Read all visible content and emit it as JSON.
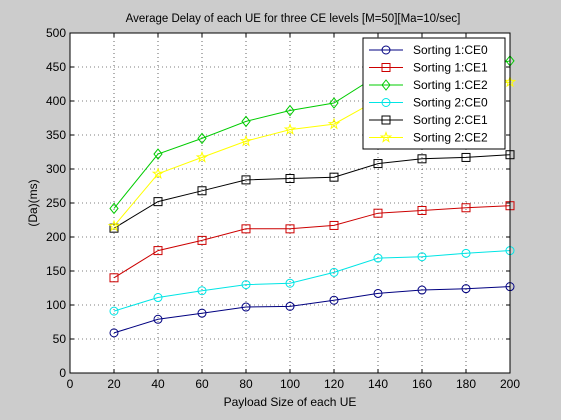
{
  "chart_data": {
    "type": "line",
    "title": "Average Delay of each UE  for three CE levels [M=50][Ma=10/sec]",
    "xlabel": "Payload Size of each UE",
    "ylabel": "(Da)(ms)",
    "xlim": [
      0,
      200
    ],
    "ylim": [
      0,
      500
    ],
    "xticks": [
      0,
      20,
      40,
      60,
      80,
      100,
      120,
      140,
      160,
      180,
      200
    ],
    "yticks": [
      0,
      50,
      100,
      150,
      200,
      250,
      300,
      350,
      400,
      450,
      500
    ],
    "grid": true,
    "legend_position": "top-right",
    "x": [
      20,
      40,
      60,
      80,
      100,
      120,
      140,
      160,
      180,
      200
    ],
    "series": [
      {
        "name": "Sorting 1:CE0",
        "color": "#000080",
        "marker": "circle",
        "values": [
          59,
          79,
          88,
          97,
          98,
          107,
          117,
          122,
          124,
          127
        ]
      },
      {
        "name": "Sorting 1:CE1",
        "color": "#cc0000",
        "marker": "square",
        "values": [
          140,
          180,
          195,
          212,
          212,
          217,
          235,
          239,
          243,
          246
        ]
      },
      {
        "name": "Sorting 1:CE2",
        "color": "#00cc00",
        "marker": "diamond",
        "values": [
          242,
          322,
          345,
          370,
          386,
          397,
          438,
          442,
          446,
          459
        ]
      },
      {
        "name": "Sorting 2:CE0",
        "color": "#00e5e5",
        "marker": "circle",
        "values": [
          91,
          111,
          121,
          130,
          132,
          148,
          169,
          171,
          176,
          180
        ]
      },
      {
        "name": "Sorting 2:CE1",
        "color": "#000000",
        "marker": "square",
        "values": [
          213,
          252,
          268,
          284,
          286,
          288,
          308,
          315,
          317,
          321
        ]
      },
      {
        "name": "Sorting 2:CE2",
        "color": "#ffff00",
        "marker": "star",
        "values": [
          216,
          293,
          317,
          341,
          358,
          366,
          402,
          410,
          418,
          428
        ]
      }
    ]
  }
}
